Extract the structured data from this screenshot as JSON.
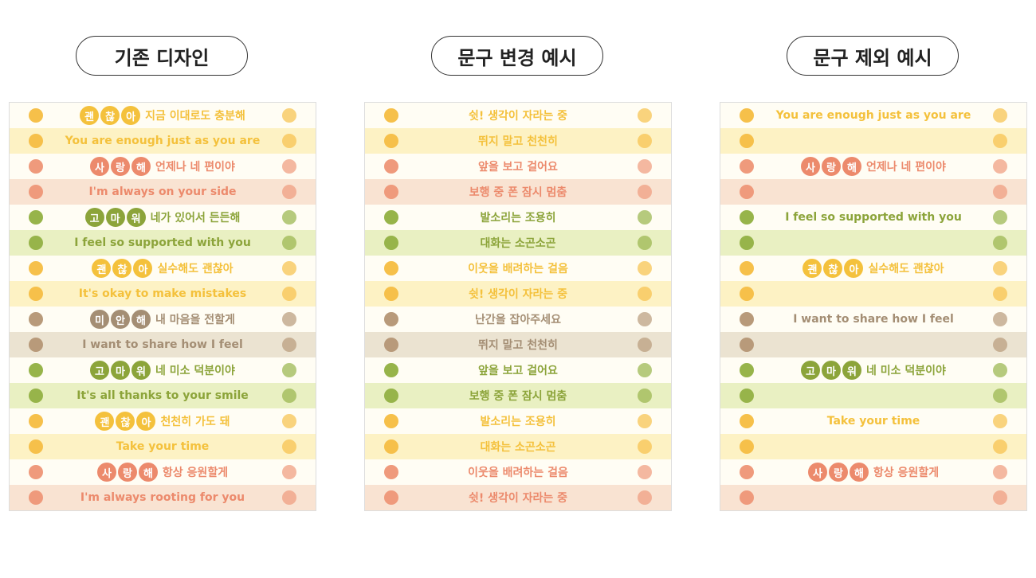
{
  "panels": [
    {
      "title": "기존 디자인",
      "rows": [
        {
          "badge": [
            "괜",
            "찮",
            "아"
          ],
          "text": "지금 이대로도 충분해"
        },
        {
          "text": "You are enough just as you are"
        },
        {
          "badge": [
            "사",
            "랑",
            "해"
          ],
          "text": "언제나 네 편이야"
        },
        {
          "text": "I'm always on your side"
        },
        {
          "badge": [
            "고",
            "마",
            "워"
          ],
          "text": "네가 있어서 든든해"
        },
        {
          "text": "I feel so supported with you"
        },
        {
          "badge": [
            "괜",
            "찮",
            "아"
          ],
          "text": "실수해도 괜찮아"
        },
        {
          "text": "It's okay to make mistakes"
        },
        {
          "badge": [
            "미",
            "안",
            "해"
          ],
          "text": "내 마음을 전할게"
        },
        {
          "text": "I want to share how I feel"
        },
        {
          "badge": [
            "고",
            "마",
            "워"
          ],
          "text": "네 미소 덕분이야"
        },
        {
          "text": "It's all thanks to your smile"
        },
        {
          "badge": [
            "괜",
            "찮",
            "아"
          ],
          "text": "천천히 가도 돼"
        },
        {
          "text": "Take your time"
        },
        {
          "badge": [
            "사",
            "랑",
            "해"
          ],
          "text": "항상 응원할게"
        },
        {
          "text": "I'm always rooting for you"
        }
      ]
    },
    {
      "title": "문구 변경 예시",
      "rows": [
        {
          "text": "쉿! 생각이 자라는 중"
        },
        {
          "text": "뛰지 말고 천천히"
        },
        {
          "text": "앞을 보고 걸어요"
        },
        {
          "text": "보행 중 폰 잠시 멈춤"
        },
        {
          "text": "발소리는 조용히"
        },
        {
          "text": "대화는 소곤소곤"
        },
        {
          "text": "이웃을 배려하는 걸음"
        },
        {
          "text": "쉿! 생각이 자라는 중"
        },
        {
          "text": "난간을 잡아주세요"
        },
        {
          "text": "뛰지 말고 천천히"
        },
        {
          "text": "앞을 보고 걸어요"
        },
        {
          "text": "보행 중 폰 잠시 멈춤"
        },
        {
          "text": "발소리는 조용히"
        },
        {
          "text": "대화는 소곤소곤"
        },
        {
          "text": "이웃을 배려하는 걸음"
        },
        {
          "text": "쉿! 생각이 자라는 중"
        }
      ]
    },
    {
      "title": "문구 제외 예시",
      "rows": [
        {
          "text": "You are enough just as you are"
        },
        {},
        {
          "badge": [
            "사",
            "랑",
            "해"
          ],
          "text": "언제나 네 편이야"
        },
        {},
        {
          "text": "I feel so supported with you"
        },
        {},
        {
          "badge": [
            "괜",
            "찮",
            "아"
          ],
          "text": "실수해도 괜찮아"
        },
        {},
        {
          "text": "I want to share how I feel"
        },
        {},
        {
          "badge": [
            "고",
            "마",
            "워"
          ],
          "text": "네 미소 덕분이야"
        },
        {},
        {
          "text": "Take your time"
        },
        {},
        {
          "badge": [
            "사",
            "랑",
            "해"
          ],
          "text": "항상 응원할게"
        },
        {}
      ]
    }
  ]
}
